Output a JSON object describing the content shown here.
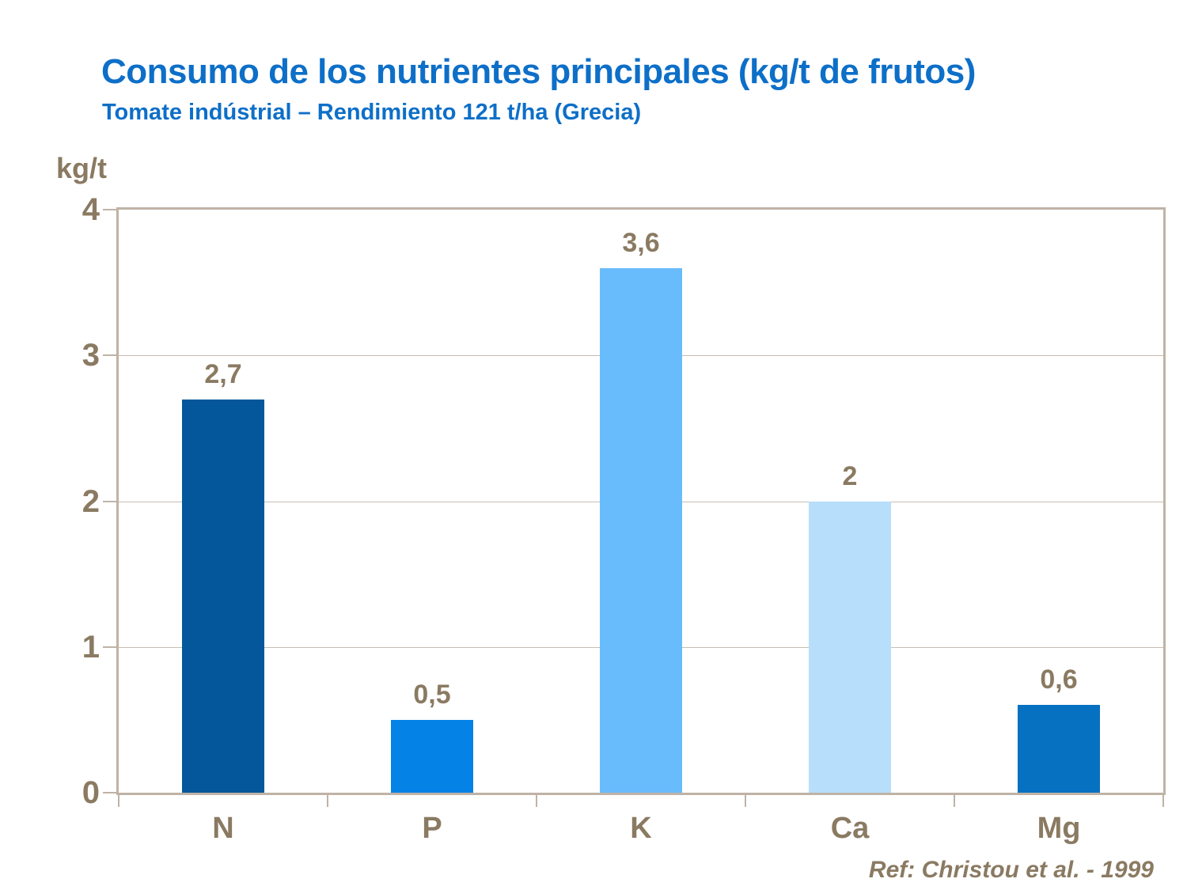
{
  "title": "Consumo de los nutrientes principales (kg/t de frutos)",
  "subtitle": "Tomate indústrial – Rendimiento 121 t/ha (Grecia)",
  "reference": "Ref: Christou et al. - 1999",
  "colors": {
    "title_text": "#0D6FC8",
    "axis_text": "#8A7A62",
    "frame": "#BFB3A6",
    "grid": "#C8BDB1",
    "background": "#FFFFFF"
  },
  "chart_data": {
    "type": "bar",
    "title": "Consumo de los nutrientes principales (kg/t de frutos)",
    "subtitle": "Tomate indústrial – Rendimiento 121 t/ha (Grecia)",
    "ylabel": "kg/t",
    "xlabel": "",
    "ylim": [
      0,
      4
    ],
    "yticks": [
      0,
      1,
      2,
      3,
      4
    ],
    "grid": true,
    "legend_position": "none",
    "categories": [
      "N",
      "P",
      "K",
      "Ca",
      "Mg"
    ],
    "values": [
      2.7,
      0.5,
      3.6,
      2,
      0.6
    ],
    "value_labels": [
      "2,7",
      "0,5",
      "3,6",
      "2",
      "0,6"
    ],
    "bar_colors": [
      "#05579B",
      "#0582E6",
      "#69BCFB",
      "#B7DEFB",
      "#0671C1"
    ],
    "annotation": "Ref: Christou et al. - 1999"
  }
}
